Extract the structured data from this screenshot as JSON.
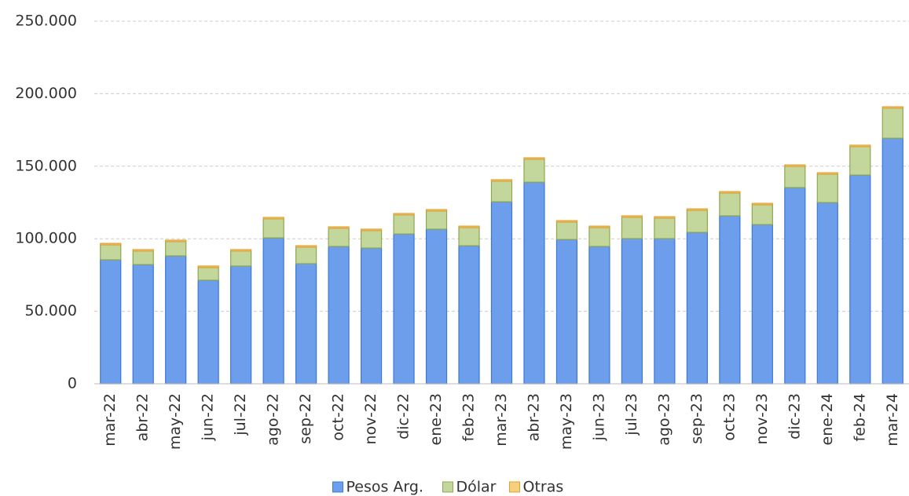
{
  "chart_data": {
    "type": "stacked_bar",
    "categories": [
      "mar-22",
      "abr-22",
      "may-22",
      "jun-22",
      "jul-22",
      "ago-22",
      "sep-22",
      "oct-22",
      "nov-22",
      "dic-22",
      "ene-23",
      "feb-23",
      "mar-23",
      "abr-23",
      "may-23",
      "jun-23",
      "jul-23",
      "ago-23",
      "sep-23",
      "oct-23",
      "nov-23",
      "dic-23",
      "ene-24",
      "feb-24",
      "mar-24"
    ],
    "series": [
      {
        "name": "Pesos Arg.",
        "color": "#6d9eeb",
        "values": [
          85500,
          82200,
          88200,
          71400,
          81200,
          100600,
          82800,
          94700,
          93600,
          103300,
          106600,
          95200,
          125500,
          139000,
          99500,
          94700,
          100100,
          100100,
          104400,
          115800,
          109800,
          135300,
          125000,
          143900,
          169300
        ]
      },
      {
        "name": "Dólar",
        "color": "#c3d69b",
        "values": [
          10300,
          9300,
          9800,
          8800,
          10300,
          13100,
          11400,
          12500,
          12000,
          13100,
          12500,
          12500,
          14200,
          15800,
          12000,
          13000,
          14700,
          14100,
          15200,
          15700,
          13600,
          14600,
          19500,
          19600,
          20700
        ]
      },
      {
        "name": "Otras",
        "color": "#f6cf7f",
        "values": [
          1000,
          1000,
          1000,
          1000,
          1000,
          1000,
          1000,
          1000,
          1000,
          1000,
          1000,
          1000,
          1000,
          1000,
          1000,
          1000,
          1000,
          1000,
          1000,
          1000,
          1000,
          1000,
          1000,
          1000,
          1000
        ]
      }
    ],
    "ylim": [
      0,
      250000
    ],
    "yticks": [
      0,
      {
        "value": 50000,
        "label": "50.000"
      },
      {
        "value": 100000,
        "label": "100.000"
      },
      {
        "value": 150000,
        "label": "150.000"
      },
      {
        "value": 200000,
        "label": "200.000"
      },
      {
        "value": 250000,
        "label": "250.000"
      }
    ],
    "grid": true,
    "legend": "bottom"
  }
}
